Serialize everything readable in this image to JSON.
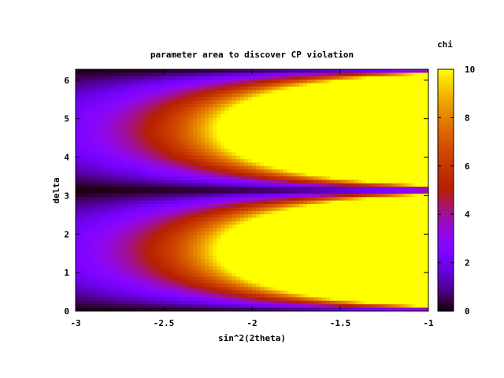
{
  "chart_data": {
    "type": "heatmap",
    "title": "parameter area to discover CP violation",
    "xlabel": "sin^2(2theta)",
    "ylabel": "delta",
    "colorbar_label": "chi",
    "xlim": [
      -3,
      -1
    ],
    "ylim": [
      0,
      6.283
    ],
    "zlim": [
      0,
      10
    ],
    "x_ticks": [
      -3,
      -2.5,
      -2,
      -1.5,
      -1
    ],
    "x_tick_labels": [
      "-3",
      "-2.5",
      "-2",
      "-1.5",
      "-1"
    ],
    "y_ticks": [
      0,
      1,
      2,
      3,
      4,
      5,
      6
    ],
    "y_tick_labels": [
      "0",
      "1",
      "2",
      "3",
      "4",
      "5",
      "6"
    ],
    "colorbar_ticks": [
      0,
      2,
      4,
      6,
      8,
      10
    ],
    "colorbar_tick_labels": [
      "0",
      "2",
      "4",
      "6",
      "8",
      "10"
    ],
    "colormap": "gnuplot rgbformulae 7,5,15 (black-purple-red-yellow)",
    "colormap_stops": [
      "#000000",
      "#6a00ff",
      "#c12a00",
      "#ff9b00",
      "#ffff00"
    ],
    "grid": false,
    "legend": "none",
    "function": "chi = min(10, 10 * |sin(delta)| * 10^((x + 2.2) / 1.3))"
  }
}
